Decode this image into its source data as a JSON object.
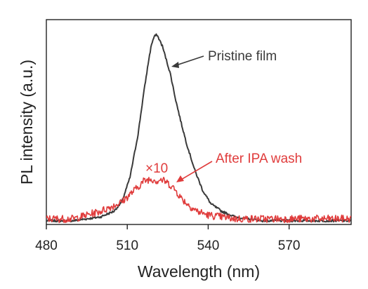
{
  "chart_data": {
    "type": "line",
    "title": "",
    "xlabel": "Wavelength (nm)",
    "ylabel": "PL intensity (a.u.)",
    "xlim": [
      480,
      593
    ],
    "ylim": [
      0,
      1.09
    ],
    "xticks": [
      480,
      510,
      540,
      570
    ],
    "xtick_labels": [
      "480",
      "510",
      "540",
      "570"
    ],
    "yticks_shown": false,
    "grid": false,
    "legend": "none",
    "series": [
      {
        "name": "Pristine film",
        "color": "#3a3a3a",
        "peak_x": 521,
        "x": [
          480,
          490,
          495,
          500,
          505,
          508,
          511,
          514,
          516,
          518,
          519,
          520,
          521,
          522,
          523,
          524,
          526,
          528,
          530,
          532,
          535,
          538,
          541,
          545,
          550,
          555,
          560,
          570,
          580,
          593
        ],
        "y": [
          0.02,
          0.02,
          0.03,
          0.04,
          0.07,
          0.12,
          0.25,
          0.48,
          0.69,
          0.88,
          0.96,
          1.0,
          1.01,
          0.98,
          0.95,
          0.9,
          0.8,
          0.66,
          0.54,
          0.43,
          0.29,
          0.18,
          0.11,
          0.07,
          0.04,
          0.03,
          0.02,
          0.02,
          0.02,
          0.02
        ]
      },
      {
        "name": "After IPA wash",
        "color": "#e03c3c",
        "multiplier_label": "×10",
        "x": [
          480,
          490,
          495,
          500,
          505,
          508,
          511,
          514,
          516,
          518,
          520,
          521,
          522,
          524,
          526,
          528,
          530,
          533,
          536,
          540,
          545,
          550,
          560,
          570,
          580,
          593
        ],
        "y": [
          0.03,
          0.03,
          0.05,
          0.07,
          0.1,
          0.12,
          0.16,
          0.2,
          0.23,
          0.24,
          0.24,
          0.23,
          0.24,
          0.23,
          0.21,
          0.18,
          0.14,
          0.1,
          0.07,
          0.05,
          0.04,
          0.03,
          0.03,
          0.03,
          0.03,
          0.03
        ]
      }
    ],
    "annotations": [
      {
        "text": "Pristine film",
        "target_series": 0,
        "color": "#3a3a3a"
      },
      {
        "text": "After IPA wash",
        "target_series": 1,
        "color": "#e03c3c"
      },
      {
        "text": "×10",
        "target_series": 1,
        "color": "#e03c3c"
      }
    ]
  }
}
